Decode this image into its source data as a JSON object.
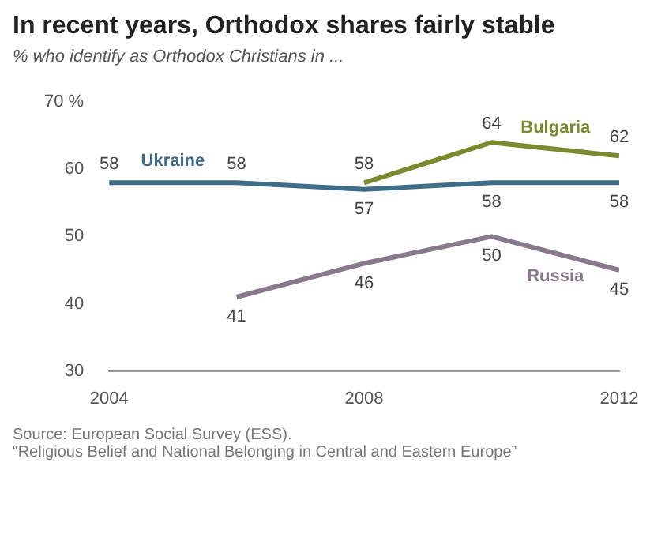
{
  "chart_data": {
    "type": "line",
    "title": "In recent years, Orthodox shares fairly stable",
    "subtitle": "% who identify as Orthodox Christians in ...",
    "series": [
      {
        "name": "Ukraine",
        "color": "#3f6c86",
        "x": [
          2004,
          2006,
          2008,
          2010,
          2012
        ],
        "values": [
          58,
          58,
          57,
          58,
          58
        ]
      },
      {
        "name": "Bulgaria",
        "color": "#7b8a2e",
        "x": [
          2008,
          2010,
          2012
        ],
        "values": [
          58,
          64,
          62
        ]
      },
      {
        "name": "Russia",
        "color": "#887a8c",
        "x": [
          2006,
          2008,
          2010,
          2012
        ],
        "values": [
          41,
          46,
          50,
          45
        ]
      }
    ],
    "xlim": [
      2004,
      2012
    ],
    "xticks": [
      2004,
      2008,
      2012
    ],
    "ylim": [
      30,
      70
    ],
    "yticks": [
      30,
      40,
      50,
      60,
      {
        "value": 70,
        "label": "70 %"
      }
    ],
    "grid": false,
    "legend": false,
    "data_labels": true,
    "line_style": "solid",
    "marker": "none",
    "annotations": [
      "Source: European Social Survey (ESS).",
      "“Religious Belief and National Belonging in Central and Eastern Europe”"
    ]
  }
}
